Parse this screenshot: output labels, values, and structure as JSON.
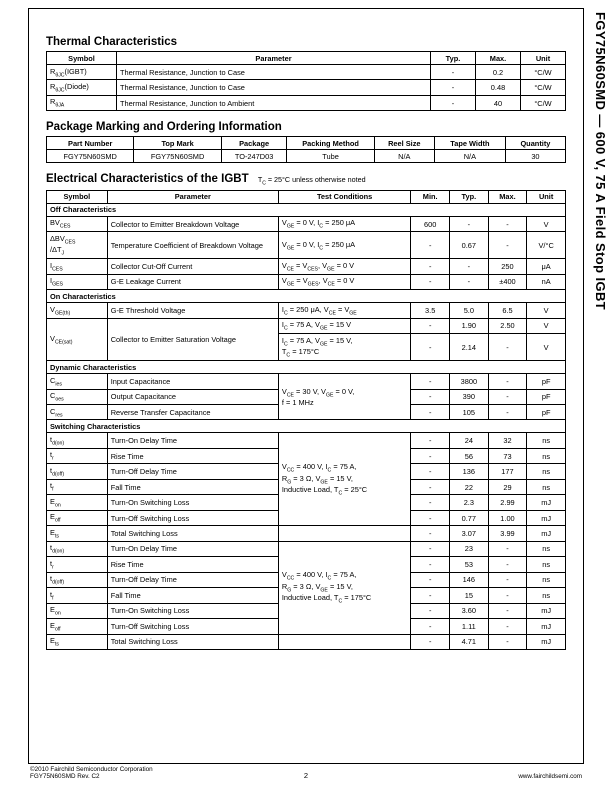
{
  "side_title": "FGY75N60SMD — 600 V, 75 A Field Stop IGBT",
  "sections": {
    "thermal": "Thermal Characteristics",
    "package": "Package Marking and Ordering Information",
    "electrical": "Electrical Characteristics of the IGBT",
    "electrical_note": "T<sub>C</sub> = 25°C unless otherwise noted"
  },
  "thermal_table": {
    "headers": [
      "Symbol",
      "Parameter",
      "Typ.",
      "Max.",
      "Unit"
    ],
    "rows": [
      [
        "R<sub>θJC</sub>(IGBT)",
        "Thermal Resistance, Junction to Case",
        "-",
        "0.2",
        "°C/W"
      ],
      [
        "R<sub>θJC</sub>(Diode)",
        "Thermal Resistance, Junction to Case",
        "-",
        "0.48",
        "°C/W"
      ],
      [
        "R<sub>θJA</sub>",
        "Thermal Resistance, Junction to Ambient",
        "-",
        "40",
        "°C/W"
      ]
    ]
  },
  "package_table": {
    "headers": [
      "Part Number",
      "Top Mark",
      "Package",
      "Packing Method",
      "Reel Size",
      "Tape Width",
      "Quantity"
    ],
    "rows": [
      [
        "FGY75N60SMD",
        "FGY75N60SMD",
        "TO-247D03",
        "Tube",
        "N/A",
        "N/A",
        "30"
      ]
    ]
  },
  "electrical_table": {
    "headers": [
      "Symbol",
      "Parameter",
      "Test Conditions",
      "Min.",
      "Typ.",
      "Max.",
      "Unit"
    ],
    "groups": [
      {
        "title": "Off Characteristics",
        "rows": [
          [
            "BV<sub>CES</sub>",
            "Collector to Emitter Breakdown Voltage",
            "V<sub>GE</sub> = 0 V, I<sub>C</sub> = 250 μA",
            "600",
            "-",
            "-",
            "V"
          ],
          [
            "ΔBV<sub>CES</sub><br>/ΔT<sub>J</sub>",
            "Temperature Coefficient of Breakdown Voltage",
            "V<sub>GE</sub> = 0 V, I<sub>C</sub> = 250 μA",
            "-",
            "0.67",
            "-",
            "V/°C"
          ],
          [
            "I<sub>CES</sub>",
            "Collector Cut-Off Current",
            "V<sub>CE</sub> = V<sub>CES</sub>, V<sub>GE</sub> = 0 V",
            "-",
            "-",
            "250",
            "μA"
          ],
          [
            "I<sub>GES</sub>",
            "G-E Leakage Current",
            "V<sub>GE</sub> = V<sub>GES</sub>, V<sub>CE</sub> = 0 V",
            "-",
            "-",
            "±400",
            "nA"
          ]
        ]
      },
      {
        "title": "On Characteristics",
        "rows": [
          [
            "V<sub>GE(th)</sub>",
            "G-E Threshold Voltage",
            "I<sub>C</sub> = 250 μA, V<sub>CE</sub> = V<sub>GE</sub>",
            "3.5",
            "5.0",
            "6.5",
            "V"
          ],
          [
            "__ROWSPAN2__V<sub>CE(sat)</sub>",
            "__ROWSPAN2__Collector to Emitter Saturation Voltage",
            "I<sub>C</sub> = 75 A, V<sub>GE</sub> = 15 V",
            "-",
            "1.90",
            "2.50",
            "V"
          ],
          [
            "",
            "",
            "I<sub>C</sub> = 75 A, V<sub>GE</sub> = 15 V,<br>T<sub>C</sub> = 175°C",
            "-",
            "2.14",
            "-",
            "V"
          ]
        ]
      },
      {
        "title": "Dynamic Characteristics",
        "rows": [
          [
            "C<sub>ies</sub>",
            "Input Capacitance",
            "__ROWSPAN3__V<sub>CE</sub> = 30 V, V<sub>GE</sub> = 0 V,<br>f = 1 MHz",
            "-",
            "3800",
            "-",
            "pF"
          ],
          [
            "C<sub>oes</sub>",
            "Output Capacitance",
            "",
            "-",
            "390",
            "-",
            "pF"
          ],
          [
            "C<sub>res</sub>",
            "Reverse Transfer Capacitance",
            "",
            "-",
            "105",
            "-",
            "pF"
          ]
        ]
      },
      {
        "title": "Switching Characteristics",
        "rows": [
          [
            "t<sub>d(on)</sub>",
            "Turn-On Delay Time",
            "__ROWSPAN6__V<sub>CC</sub> = 400 V, I<sub>C</sub> = 75 A,<br>R<sub>G</sub> = 3 Ω, V<sub>GE</sub> = 15 V,<br>Inductive Load, T<sub>C</sub> = 25°C",
            "-",
            "24",
            "32",
            "ns"
          ],
          [
            "t<sub>r</sub>",
            "Rise Time",
            "",
            "-",
            "56",
            "73",
            "ns"
          ],
          [
            "t<sub>d(off)</sub>",
            "Turn-Off Delay Time",
            "",
            "-",
            "136",
            "177",
            "ns"
          ],
          [
            "t<sub>f</sub>",
            "Fall Time",
            "",
            "-",
            "22",
            "29",
            "ns"
          ],
          [
            "E<sub>on</sub>",
            "Turn-On Switching Loss",
            "",
            "-",
            "2.3",
            "2.99",
            "mJ"
          ],
          [
            "E<sub>off</sub>",
            "Turn-Off Switching Loss",
            "",
            "-",
            "0.77",
            "1.00",
            "mJ"
          ],
          [
            "E<sub>ts</sub>",
            "Total Switching Loss",
            "__SINGLE__",
            "-",
            "3.07",
            "3.99",
            "mJ"
          ],
          [
            "t<sub>d(on)</sub>",
            "Turn-On Delay Time",
            "__ROWSPAN6__V<sub>CC</sub> = 400 V, I<sub>C</sub> = 75 A,<br>R<sub>G</sub> = 3 Ω, V<sub>GE</sub> = 15 V,<br>Inductive Load, T<sub>C</sub> = 175°C",
            "-",
            "23",
            "-",
            "ns"
          ],
          [
            "t<sub>r</sub>",
            "Rise Time",
            "",
            "-",
            "53",
            "-",
            "ns"
          ],
          [
            "t<sub>d(off)</sub>",
            "Turn-Off Delay Time",
            "",
            "-",
            "146",
            "-",
            "ns"
          ],
          [
            "t<sub>f</sub>",
            "Fall Time",
            "",
            "-",
            "15",
            "-",
            "ns"
          ],
          [
            "E<sub>on</sub>",
            "Turn-On Switching Loss",
            "",
            "-",
            "3.60",
            "-",
            "mJ"
          ],
          [
            "E<sub>off</sub>",
            "Turn-Off Switching Loss",
            "",
            "-",
            "1.11",
            "-",
            "mJ"
          ],
          [
            "E<sub>ts</sub>",
            "Total Switching Loss",
            "__SINGLE__",
            "-",
            "4.71",
            "-",
            "mJ"
          ]
        ]
      }
    ]
  },
  "footer": {
    "left1": "©2010 Fairchild Semiconductor Corporation",
    "left2": "FGY75N60SMD Rev. C2",
    "page": "2",
    "right": "www.fairchildsemi.com"
  },
  "col_widths": {
    "thermal": [
      "70",
      "auto",
      "45",
      "45",
      "45"
    ],
    "package": [
      "80",
      "80",
      "60",
      "80",
      "55",
      "65",
      "55"
    ],
    "electrical": [
      "55",
      "155",
      "120",
      "35",
      "35",
      "35",
      "35"
    ]
  }
}
